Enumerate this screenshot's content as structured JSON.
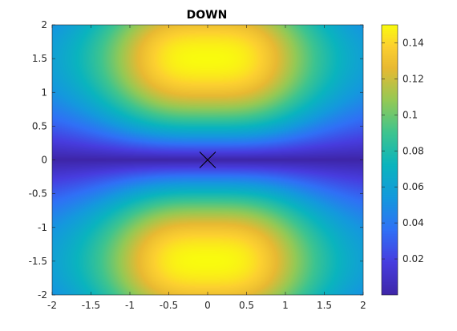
{
  "chart_data": {
    "type": "heatmap",
    "title": "DOWN",
    "xlabel": "",
    "ylabel": "",
    "xlim": [
      -2,
      2
    ],
    "ylim": [
      -2,
      2
    ],
    "x_ticks": [
      "-2",
      "-1.5",
      "-1",
      "-0.5",
      "0",
      "0.5",
      "1",
      "1.5",
      "2"
    ],
    "y_ticks": [
      "2",
      "1.5",
      "1",
      "0.5",
      "0",
      "-0.5",
      "-1",
      "-1.5",
      "-2"
    ],
    "colorbar": {
      "range": [
        0,
        0.15
      ],
      "ticks": [
        "0.14",
        "0.12",
        "0.1",
        "0.08",
        "0.06",
        "0.04",
        "0.02"
      ],
      "tick_values": [
        0.14,
        0.12,
        0.1,
        0.08,
        0.06,
        0.04,
        0.02
      ],
      "colormap": "parula"
    },
    "field": {
      "peak_value": 0.15,
      "peaks": [
        [
          0,
          1.5
        ],
        [
          0,
          -1.5
        ]
      ],
      "min_value": 0,
      "minimum_along": "y = 0"
    },
    "marker": {
      "shape": "x",
      "x": 0,
      "y": 0,
      "color": "#000000"
    }
  }
}
